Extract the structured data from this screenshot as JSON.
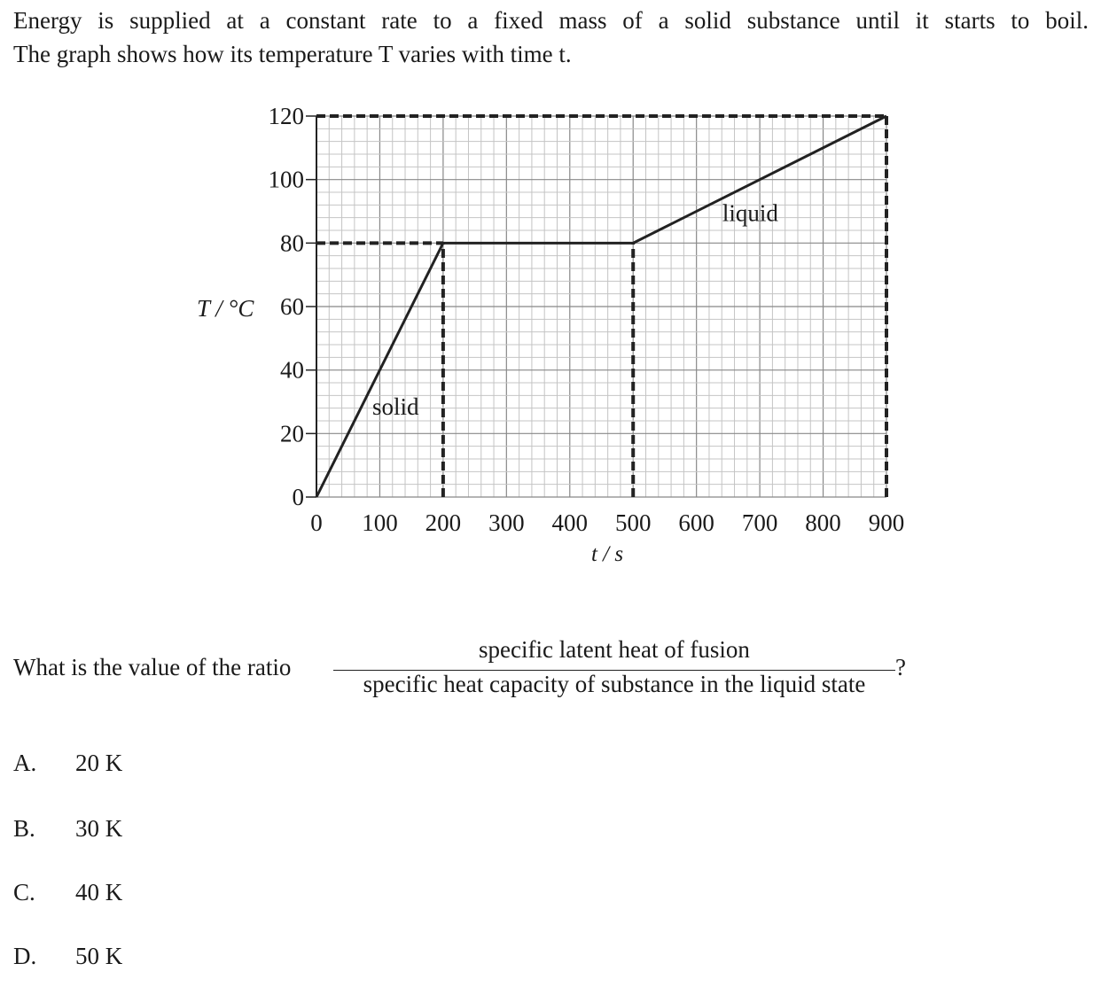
{
  "question": {
    "stem_line1": "Energy is supplied at a constant rate to a fixed mass of a solid substance until it starts to boil.",
    "stem_line2": "The graph shows how its temperature T varies with time t.",
    "prompt": "What is the value of the ratio",
    "numerator": "specific latent heat of fusion",
    "denominator": "specific heat capacity of substance in the liquid state",
    "question_mark": "?",
    "options": [
      {
        "letter": "A.",
        "text": "20 K"
      },
      {
        "letter": "B.",
        "text": "30 K"
      },
      {
        "letter": "C.",
        "text": "40 K"
      },
      {
        "letter": "D.",
        "text": "50 K"
      }
    ]
  },
  "chart_data": {
    "type": "line",
    "xlabel": "t / s",
    "ylabel": "T / °C",
    "xlim": [
      0,
      900
    ],
    "ylim": [
      0,
      120
    ],
    "x_ticks": [
      "0",
      "100",
      "200",
      "300",
      "400",
      "500",
      "600",
      "700",
      "800",
      "900"
    ],
    "y_ticks": [
      "0",
      "20",
      "40",
      "60",
      "80",
      "100",
      "120"
    ],
    "grid": true,
    "series": [
      {
        "x": [
          0,
          200,
          500,
          900
        ],
        "y": [
          0,
          80,
          80,
          120
        ]
      }
    ],
    "guides": [
      {
        "from": [
          0,
          80
        ],
        "to": [
          200,
          80
        ]
      },
      {
        "from": [
          200,
          0
        ],
        "to": [
          200,
          80
        ]
      },
      {
        "from": [
          500,
          0
        ],
        "to": [
          500,
          80
        ]
      },
      {
        "from": [
          0,
          120
        ],
        "to": [
          900,
          120
        ]
      },
      {
        "from": [
          900,
          0
        ],
        "to": [
          900,
          120
        ]
      }
    ],
    "annotations": [
      {
        "text": "solid",
        "x": 125,
        "y": 26
      },
      {
        "text": "liquid",
        "x": 685,
        "y": 87
      }
    ]
  }
}
